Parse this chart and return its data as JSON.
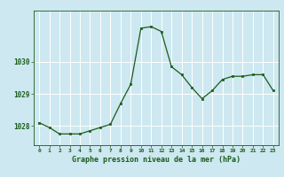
{
  "x": [
    0,
    1,
    2,
    3,
    4,
    5,
    6,
    7,
    8,
    9,
    10,
    11,
    12,
    13,
    14,
    15,
    16,
    17,
    18,
    19,
    20,
    21,
    22,
    23
  ],
  "y": [
    1028.1,
    1027.95,
    1027.75,
    1027.75,
    1027.75,
    1027.85,
    1027.95,
    1028.05,
    1028.7,
    1029.3,
    1031.05,
    1031.1,
    1030.95,
    1029.85,
    1029.6,
    1029.2,
    1028.85,
    1029.1,
    1029.45,
    1029.55,
    1029.55,
    1029.6,
    1029.6,
    1029.1
  ],
  "xlabel": "Graphe pression niveau de la mer (hPa)",
  "bg_color": "#cde8f0",
  "line_color": "#1a5c1a",
  "marker_color": "#1a5c1a",
  "grid_color": "#ffffff",
  "yticks": [
    1028,
    1029,
    1030
  ],
  "ylim": [
    1027.4,
    1031.6
  ],
  "xlim": [
    -0.5,
    23.5
  ]
}
